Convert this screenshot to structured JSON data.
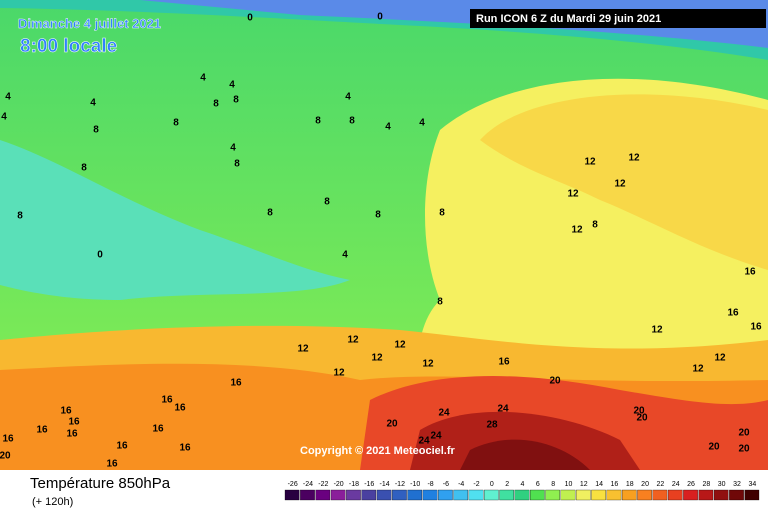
{
  "header": {
    "date": "Dimanche 4 juillet 2021",
    "time": "8:00 locale",
    "run": "Run ICON 6 Z du Mardi 29 juin 2021"
  },
  "copyright": "Copyright © 2021 Meteociel.fr",
  "footer": {
    "title": "Température 850hPa",
    "subtitle": "(+ 120h)"
  },
  "legend": {
    "values": [
      -26,
      -24,
      -22,
      -20,
      -18,
      -16,
      -14,
      -12,
      -10,
      -8,
      -6,
      -4,
      -2,
      0,
      2,
      4,
      6,
      8,
      10,
      12,
      14,
      16,
      18,
      20,
      22,
      24,
      26,
      28,
      30,
      32,
      34
    ],
    "colors": [
      "#280040",
      "#4b0060",
      "#6a0080",
      "#8a1e9a",
      "#6a3aa0",
      "#4a40a0",
      "#3a50b0",
      "#3060c0",
      "#2070d0",
      "#2080e0",
      "#30a0f0",
      "#40c0f0",
      "#50e0f0",
      "#60f0d0",
      "#40e0a0",
      "#30d080",
      "#50e050",
      "#90f050",
      "#c0f050",
      "#f0f060",
      "#f8e040",
      "#f8c030",
      "#f8a020",
      "#f88020",
      "#f06020",
      "#e84020",
      "#d82020",
      "#b81818",
      "#901010",
      "#700808",
      "#400000"
    ]
  },
  "map_labels": [
    0,
    0,
    4,
    4,
    4,
    4,
    4,
    8,
    8,
    8,
    8,
    4,
    8,
    8,
    4,
    4,
    4,
    8,
    8,
    8,
    8,
    8,
    8,
    0,
    4,
    8,
    8,
    12,
    12,
    12,
    12,
    12,
    8,
    16,
    16,
    16,
    12,
    12,
    12,
    12,
    12,
    12,
    12,
    12,
    12,
    16,
    20,
    16,
    16,
    16,
    16,
    16,
    16,
    16,
    16,
    16,
    16,
    16,
    20,
    16,
    20,
    24,
    24,
    28,
    24,
    24,
    20,
    20,
    20,
    20,
    20
  ]
}
